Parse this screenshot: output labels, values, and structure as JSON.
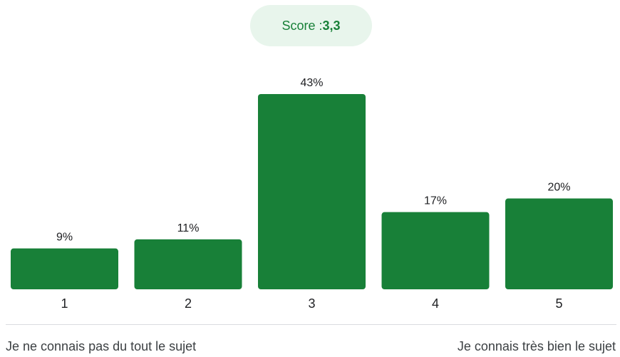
{
  "score": {
    "label": "Score : ",
    "value": "3,3"
  },
  "chart_data": {
    "type": "bar",
    "categories": [
      "1",
      "2",
      "3",
      "4",
      "5"
    ],
    "values": [
      9,
      11,
      43,
      17,
      20
    ],
    "value_labels": [
      "9%",
      "11%",
      "43%",
      "17%",
      "20%"
    ],
    "ylim": [
      0,
      43
    ],
    "grid": false,
    "bar_color": "#188038"
  },
  "scale": {
    "min_label": "Je ne connais pas du tout le sujet",
    "max_label": "Je connais très bien le sujet"
  },
  "colors": {
    "accent": "#188038",
    "badge_bg": "#e8f5ec"
  }
}
